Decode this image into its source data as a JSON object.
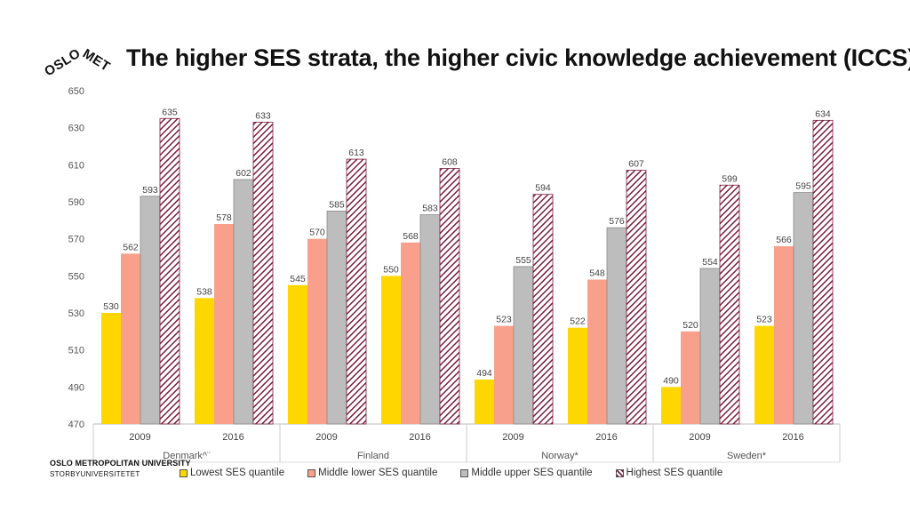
{
  "header": {
    "title": "The higher SES strata, the higher civic knowledge achievement (ICCS)"
  },
  "logo": {
    "text": "OSLOMET"
  },
  "footer": {
    "university": "OSLO METROPOLITAN UNIVERSITY",
    "university_no": "STORBYUNIVERSITETET"
  },
  "colors": {
    "lowest": "#FFD700",
    "middle_lower": "#F9A08C",
    "middle_upper": "#BDBDBD",
    "highest": "#7A1F3D"
  },
  "chart_data": {
    "type": "bar",
    "ylim": [
      470,
      650
    ],
    "yticks": [
      470,
      490,
      510,
      530,
      550,
      570,
      590,
      610,
      630,
      650
    ],
    "groups": [
      {
        "country": "Denmark^¨",
        "years": [
          "2009",
          "2016"
        ]
      },
      {
        "country": "Finland",
        "years": [
          "2009",
          "2016"
        ]
      },
      {
        "country": "Norway*",
        "years": [
          "2009",
          "2016"
        ]
      },
      {
        "country": "Sweden*",
        "years": [
          "2009",
          "2016"
        ]
      }
    ],
    "categories": [
      "Denmark 2009",
      "Denmark 2016",
      "Finland 2009",
      "Finland 2016",
      "Norway 2009",
      "Norway 2016",
      "Sweden 2009",
      "Sweden 2016"
    ],
    "series": [
      {
        "name": "Lowest SES quantile",
        "values": [
          530,
          538,
          545,
          550,
          494,
          522,
          490,
          523
        ]
      },
      {
        "name": "Middle lower SES quantile",
        "values": [
          562,
          578,
          570,
          568,
          523,
          548,
          520,
          566
        ]
      },
      {
        "name": "Middle upper SES quantile",
        "values": [
          593,
          602,
          585,
          583,
          555,
          576,
          554,
          595
        ]
      },
      {
        "name": "Highest SES quantile",
        "values": [
          635,
          633,
          613,
          608,
          594,
          607,
          599,
          634
        ]
      }
    ],
    "grid": false,
    "legend_position": "bottom"
  }
}
